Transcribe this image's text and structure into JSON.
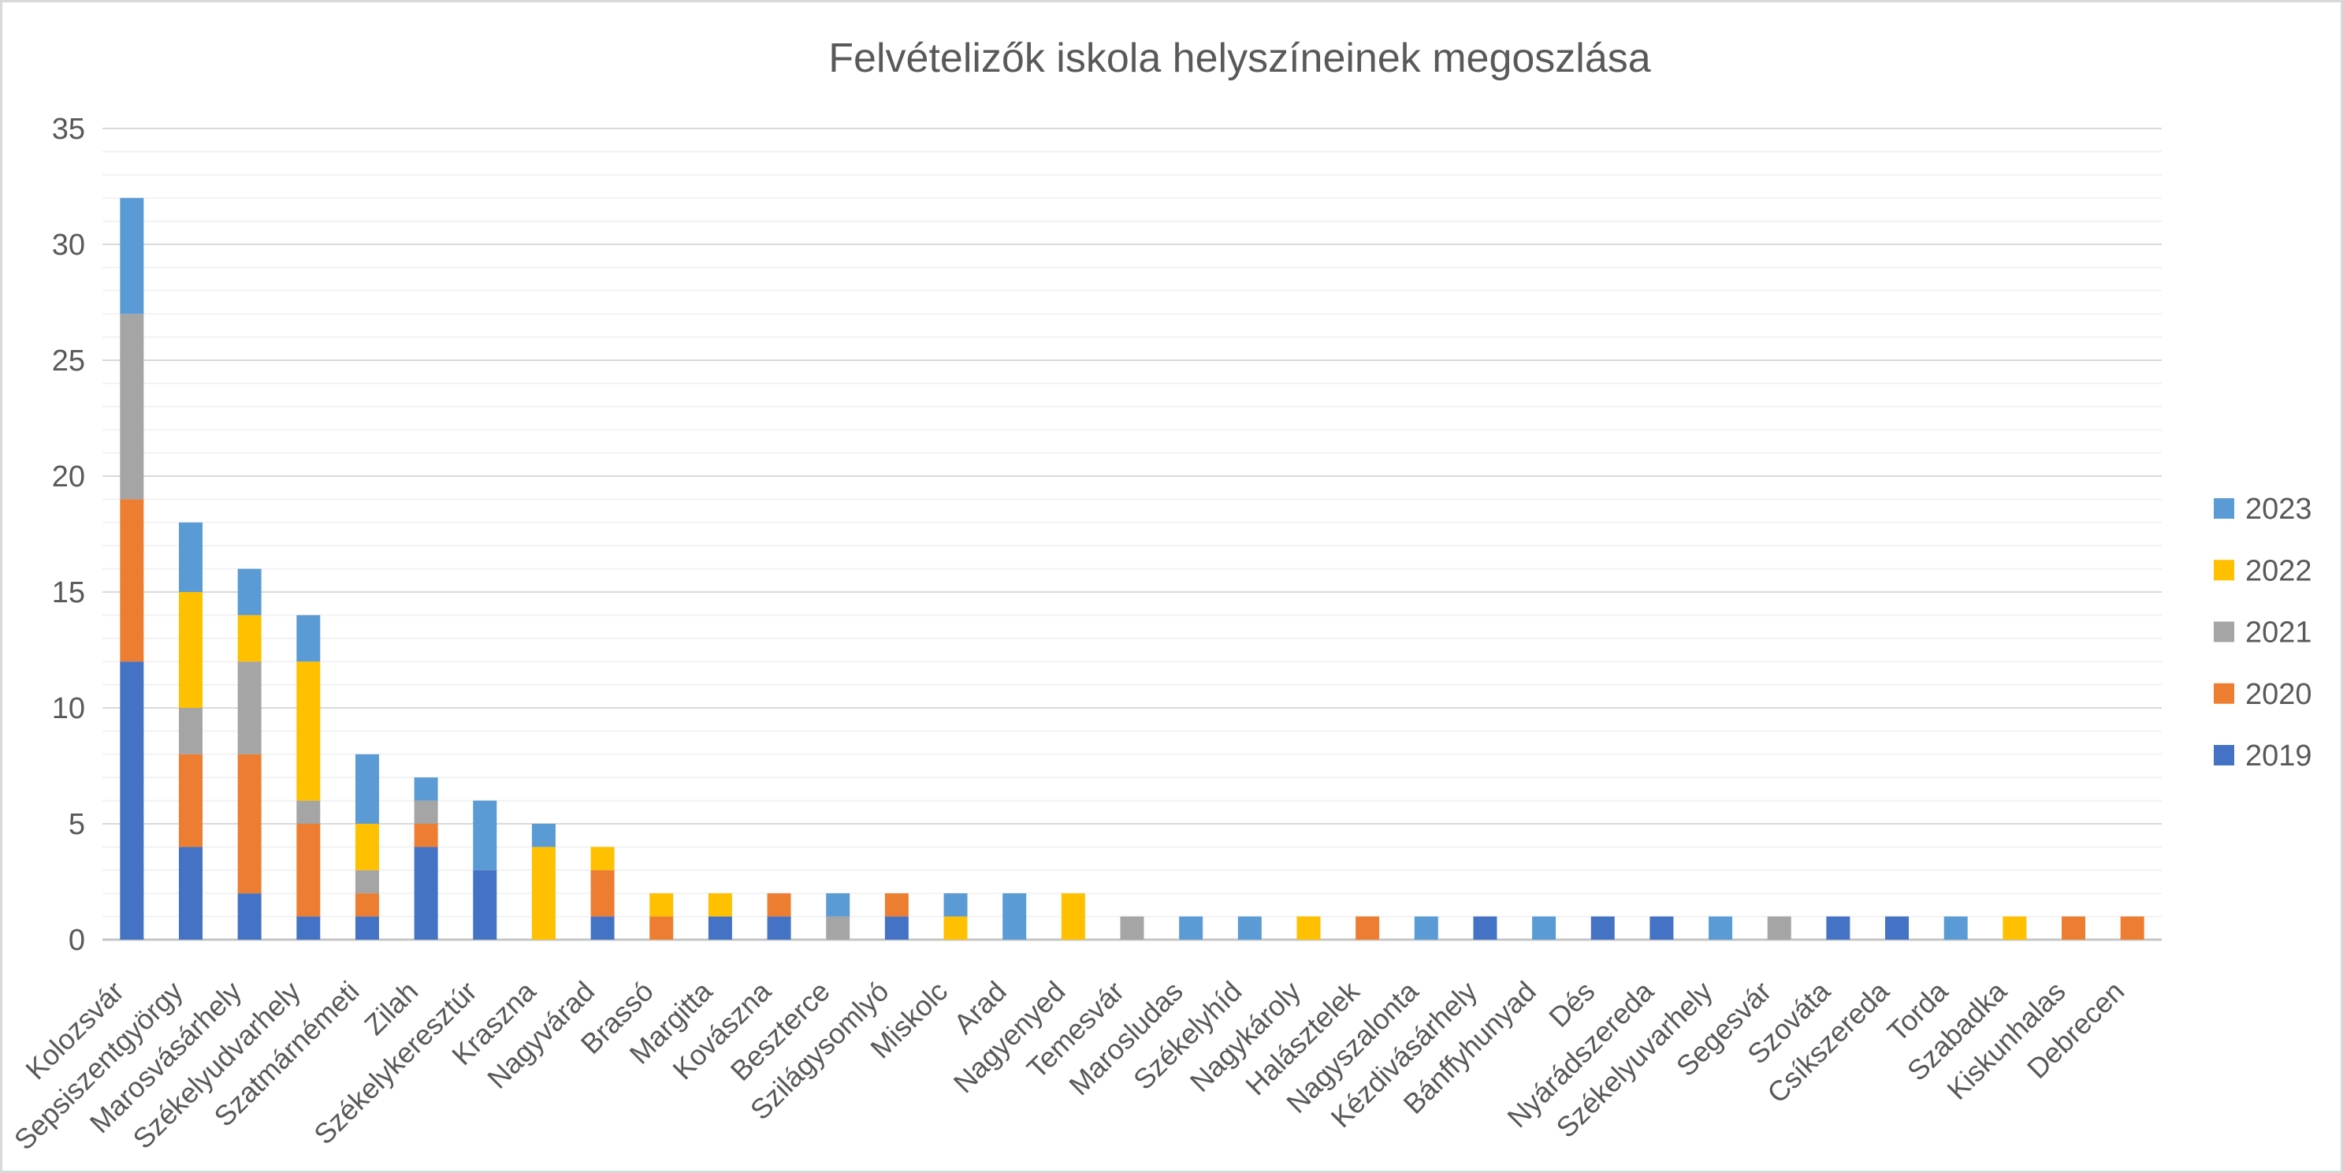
{
  "chart_data": {
    "type": "bar",
    "stacked": true,
    "title": "Felvételizők iskola helyszíneinek megoszlása",
    "categories": [
      "Kolozsvár",
      "Sepsiszentgyörgy",
      "Marosvásárhely",
      "Székelyudvarhely",
      "Szatmárnémeti",
      "Zilah",
      "Székelykeresztúr",
      "Kraszna",
      "Nagyvárad",
      "Brassó",
      "Margitta",
      "Kovászna",
      "Beszterce",
      "Szilágysomlyó",
      "Miskolc",
      "Arad",
      "Nagyenyed",
      "Temesvár",
      "Marosludas",
      "Székelyhíd",
      "Nagykároly",
      "Halásztelek",
      "Nagyszalonta",
      "Kézdivásárhely",
      "Bánffyhunyad",
      "Dés",
      "Nyárádszereda",
      "Székelyuvarhely",
      "Segesvár",
      "Szováta",
      "Csíkszereda",
      "Torda",
      "Szabadka",
      "Kiskunhalas",
      "Debrecen"
    ],
    "series": [
      {
        "name": "2019",
        "color": "#4472C4",
        "values": [
          12,
          4,
          2,
          1,
          1,
          4,
          3,
          0,
          1,
          0,
          1,
          1,
          0,
          1,
          0,
          0,
          0,
          0,
          0,
          0,
          0,
          0,
          0,
          1,
          0,
          1,
          1,
          0,
          0,
          1,
          1,
          0,
          0,
          0,
          0
        ]
      },
      {
        "name": "2020",
        "color": "#ED7D31",
        "values": [
          7,
          4,
          6,
          4,
          1,
          1,
          0,
          0,
          2,
          1,
          0,
          1,
          0,
          1,
          0,
          0,
          0,
          0,
          0,
          0,
          0,
          1,
          0,
          0,
          0,
          0,
          0,
          0,
          0,
          0,
          0,
          0,
          0,
          1,
          1
        ]
      },
      {
        "name": "2021",
        "color": "#A5A5A5",
        "values": [
          8,
          2,
          4,
          1,
          1,
          1,
          0,
          0,
          0,
          0,
          0,
          0,
          1,
          0,
          0,
          0,
          0,
          1,
          0,
          0,
          0,
          0,
          0,
          0,
          0,
          0,
          0,
          0,
          1,
          0,
          0,
          0,
          0,
          0,
          0
        ]
      },
      {
        "name": "2022",
        "color": "#FFC000",
        "values": [
          0,
          5,
          2,
          6,
          2,
          0,
          0,
          4,
          1,
          1,
          1,
          0,
          0,
          0,
          1,
          0,
          2,
          0,
          0,
          0,
          1,
          0,
          0,
          0,
          0,
          0,
          0,
          0,
          0,
          0,
          0,
          0,
          1,
          0,
          0
        ]
      },
      {
        "name": "2023",
        "color": "#5B9BD5",
        "values": [
          5,
          3,
          2,
          2,
          3,
          1,
          3,
          1,
          0,
          0,
          0,
          0,
          1,
          0,
          1,
          2,
          0,
          0,
          1,
          1,
          0,
          0,
          1,
          0,
          1,
          0,
          0,
          1,
          0,
          0,
          0,
          1,
          0,
          0,
          0
        ]
      }
    ],
    "legend": {
      "position": "right",
      "order_top_to_bottom": [
        "2023",
        "2022",
        "2021",
        "2020",
        "2019"
      ]
    },
    "y_ticks": [
      0,
      5,
      10,
      15,
      20,
      25,
      30,
      35
    ],
    "ylim": [
      0,
      35
    ],
    "x_label_rotation_deg": 45,
    "grid": {
      "minor": "#F2F2F2",
      "major": "#D9D9D9",
      "axis": "#C6C6C6",
      "minor_every": 1,
      "major_every": 5
    },
    "text_color": "#595959",
    "background": "#FFFFFF",
    "border_color": "#D9D9D9"
  }
}
